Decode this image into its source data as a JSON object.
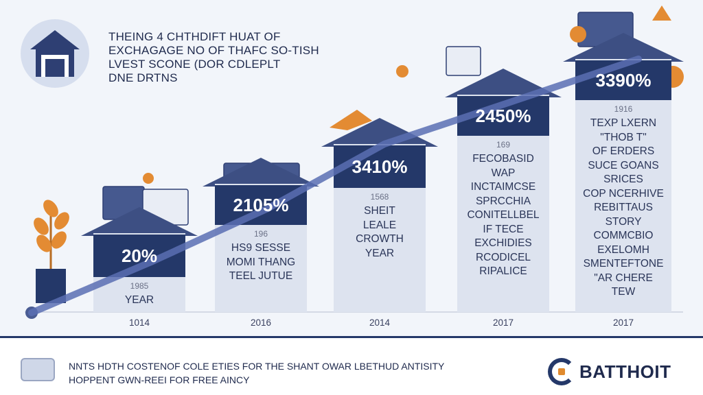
{
  "header": {
    "title_lines": [
      "THEING 4 CHTHDIFT HUAT OF",
      "EXCHAGAGE NO OF THAFC SO-TISH",
      "LVEST SCONE (DOR CDLEPLT",
      "DNE DRTNS"
    ],
    "icon": "house-icon"
  },
  "chart_data": {
    "type": "bar",
    "categories": [
      "1014",
      "2016",
      "2014",
      "2017",
      "2017"
    ],
    "series": [
      {
        "values": [
          20,
          2105,
          3410,
          2450,
          3390
        ]
      }
    ],
    "value_labels": [
      "20%",
      "2105%",
      "3410%",
      "2450%",
      "3390%"
    ],
    "x_tick_labels": [
      "1014",
      "2016",
      "2014",
      "2017",
      "2017"
    ],
    "column_texts": [
      {
        "sub": "1985",
        "lines": [
          "YEAR"
        ]
      },
      {
        "sub": "196",
        "lines": [
          "HS9 SESSE",
          "MOMI THANG",
          "TEEL JUTUE"
        ]
      },
      {
        "sub": "1568",
        "lines": [
          "SHEIT",
          "LEALE",
          "CROWTH",
          "YEAR"
        ]
      },
      {
        "sub": "169",
        "lines": [
          "FECOBASID",
          "WAP",
          "INCTAIMCSE",
          "SPRCCHIA",
          "CONITELLBEL",
          "IF TECE",
          "EXCHIDIES",
          "RCODICEL",
          "RIPALICE"
        ]
      },
      {
        "sub": "1916",
        "lines": [
          "TEXP LXERN",
          "\"THOB T\"",
          "OF ERDERS",
          "SUCE GOANS",
          "SRICES",
          "COP NCERHIVE",
          "REBITTAUS",
          "STORY",
          "COMMCBIO",
          "EXELOMH",
          "SMENTEFTONE",
          "\"AR CHERE",
          "TEW"
        ]
      }
    ],
    "colors": {
      "label_box": "#243869",
      "column": "#dde3ef",
      "roof": "#3d4f83",
      "trend": "#5a6fb3",
      "accent": "#e38b33"
    }
  },
  "footer": {
    "lines": [
      "NNTS HDTH COSTENOF COLE ETIES FOR THE SHANT OWAR LBETHUD ANTISITY",
      "HOPPENT GWN-REEI FOR FREE AINCY"
    ],
    "brand": "BATTHOIT",
    "brand_icon": "brand-logo-icon"
  }
}
